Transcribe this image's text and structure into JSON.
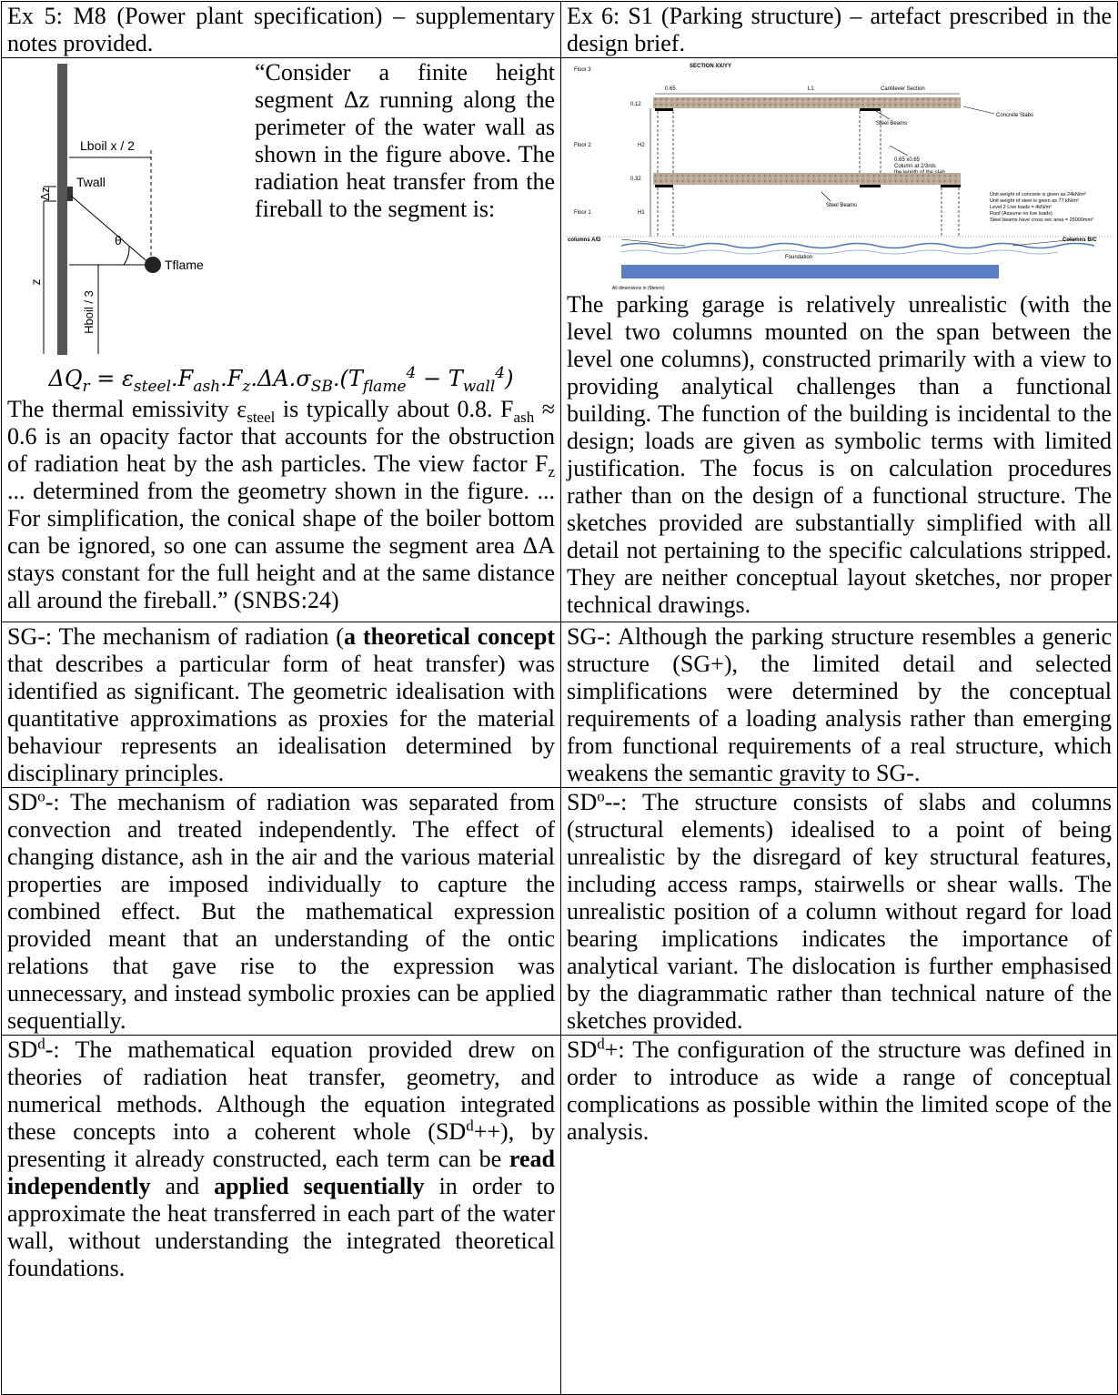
{
  "table": {
    "header": {
      "left": "Ex 5: M8 (Power plant specification) – supplementary notes provided.",
      "right": "Ex 6: S1 (Parking structure) – artefact prescribed in the design brief."
    },
    "ex5": {
      "figure_labels": [
        "Lboil x / 2",
        "Δz",
        "Twall",
        "θ",
        "z",
        "Hboil / 3",
        "Tflame"
      ],
      "quote": "“Consider a finite height segment Δz running along the perimeter of the water wall as shown in the figure above. The radiation heat transfer from the fireball to the segment is:",
      "equation": [
        "ΔQ",
        "r",
        " = ε",
        "steel",
        ".F",
        "ash",
        ".F",
        "z",
        ".ΔA.σ",
        "SB",
        ".(T",
        "flame",
        "4",
        " − T",
        "wall",
        "4",
        ")"
      ],
      "notes": [
        "The thermal emissivity ε",
        "steel",
        " is typically about 0.8. F",
        "ash",
        " ≈ 0.6 is an opacity factor that accounts for the obstruction of radiation heat by the ash particles. The view factor F",
        "z",
        " ... determined from the geometry shown in the figure. ... For simplification, the conical shape of the boiler bottom can be ignored, so one can assume the segment area ΔA stays constant for the full height and at the same distance all around the fireball.” (SNBS:24)"
      ]
    },
    "ex6": {
      "figure_labels": [
        "SECTION XX/YY",
        "Floor 3",
        "0.65",
        "L1",
        "Cantilever Section",
        "0.12",
        "Concrete Slabs",
        "Steel Beams",
        "Floor 2",
        "H2",
        "0.65 x0.65",
        "Column at 2/3rds",
        "the length of the slab",
        "0.32",
        "Steel Beams",
        "Unit weight of concrete is given as 24kN/m³",
        "Unit weight of steel is given as 77 kN/m³",
        "Level 2 Live loads = 4kN/m²",
        "Roof (Assume no live loads)",
        "Steel beams have cross sec area = 25000mm²",
        "Floor 1",
        "H1",
        "columns A/D",
        "Columns B/C",
        "Foundation",
        "All dimensions in (Meters)"
      ],
      "text": "The parking garage is relatively unrealistic (with the level two columns mounted on the span between the level one columns), constructed primarily with a view to providing analytical challenges than a functional building. The function of the building is incidental to the design; loads are given as symbolic terms with limited justification. The focus is on calculation procedures rather than on the design of a functional structure. The sketches provided are substantially simplified with all detail not pertaining to the specific calculations stripped. They are neither conceptual layout sketches, nor proper technical drawings."
    },
    "rows": [
      {
        "left": [
          "SG-: The mechanism of radiation (",
          "a theoretical concept",
          " that describes a particular form of heat transfer) was identified as significant. The geometric idealisation with quantitative approximations as proxies for the material behaviour represents an idealisation determined by disciplinary principles."
        ],
        "right": [
          "SG-:  Although the parking structure resembles a generic structure (SG+), the limited detail and selected simplifications were determined by the conceptual requirements of a loading analysis rather than emerging from functional requirements of a real structure, which weakens the semantic gravity to SG-."
        ]
      },
      {
        "left": [
          "SD",
          "o",
          "-: The mechanism of radiation was separated from convection and treated independently. The effect of changing distance, ash in the air and the various material properties are imposed individually to capture the combined effect. But the mathematical expression provided meant that an understanding of the ontic relations that gave rise to the expression was unnecessary, and instead symbolic proxies can be applied sequentially."
        ],
        "right": [
          "SD",
          "o",
          "--: The structure consists of slabs and columns (structural elements) idealised to a point of being unrealistic by the disregard of key structural features, including access ramps, stairwells or shear walls. The unrealistic position of a column without regard for load bearing implications indicates the importance of analytical variant. The dislocation is further emphasised by the diagrammatic rather than technical nature of the sketches provided."
        ]
      },
      {
        "left": [
          "SD",
          "d",
          "-: The mathematical equation provided drew on theories of radiation heat transfer, geometry, and numerical methods. Although the equation integrated these concepts into a coherent whole (SD",
          "d",
          "++), by presenting it already constructed, each term can be ",
          "read independently",
          " and ",
          "applied sequentially",
          " in order to approximate the heat transferred in each part of the water wall, without understanding the integrated theoretical foundations."
        ],
        "right": [
          "SD",
          "d",
          "+: The configuration of the structure was defined in order to introduce as wide a range of conceptual complications as possible within the limited scope of the analysis."
        ]
      }
    ]
  }
}
